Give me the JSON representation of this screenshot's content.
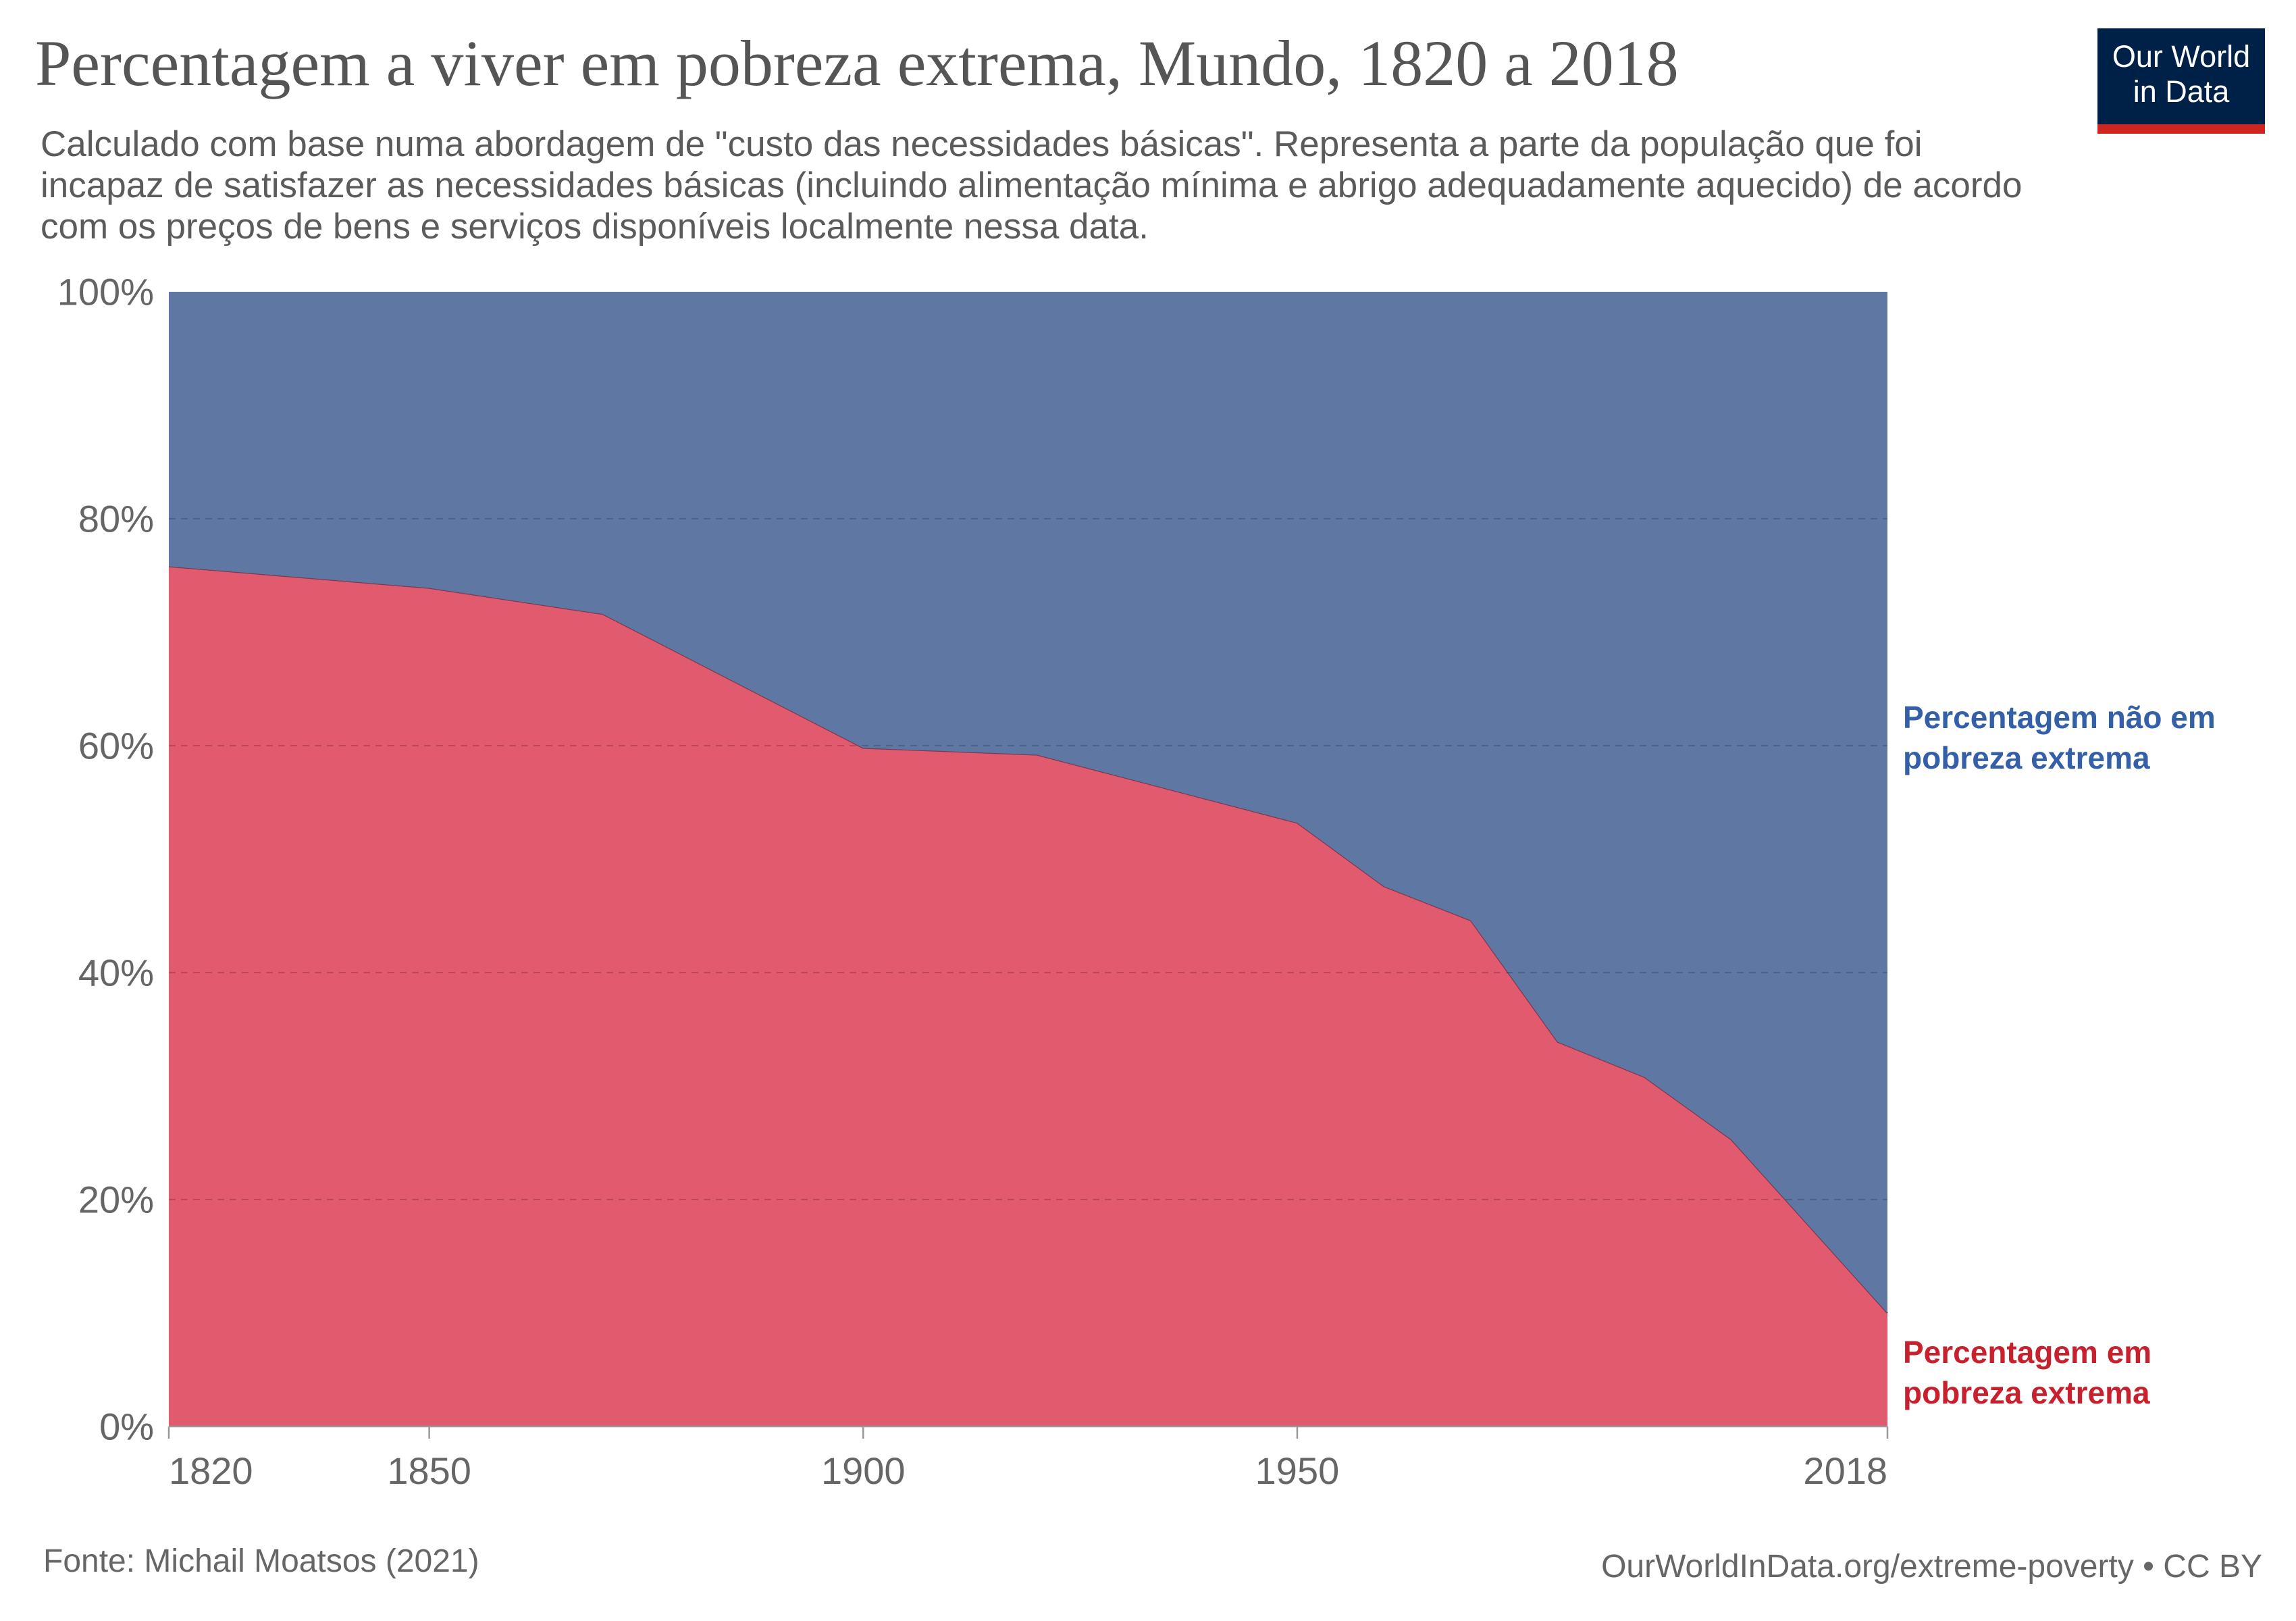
{
  "header": {
    "title": "Percentagem a viver em pobreza extrema, Mundo, 1820 a 2018",
    "subtitle": "Calculado com base numa abordagem de \"custo das necessidades básicas\". Representa a parte da população que foi incapaz de satisfazer as necessidades básicas (incluindo alimentação mínima e abrigo adequadamente aquecido) de acordo com os preços de bens e serviços disponíveis localmente nessa data."
  },
  "logo": {
    "line1": "Our World",
    "line2": "in Data"
  },
  "footer": {
    "source": "Fonte: Michail Moatsos (2021)",
    "url": "OurWorldInData.org/extreme-poverty • CC BY"
  },
  "chart_data": {
    "type": "area",
    "stacked": true,
    "title": "Percentagem a viver em pobreza extrema, Mundo, 1820 a 2018",
    "xlim": [
      1820,
      2018
    ],
    "ylim": [
      0,
      100
    ],
    "x_ticks": [
      "1820",
      "1850",
      "1900",
      "1950",
      "2018"
    ],
    "y_ticks": [
      "0%",
      "20%",
      "40%",
      "60%",
      "80%",
      "100%"
    ],
    "grid": true,
    "legend": "right",
    "x": [
      1820,
      1850,
      1870,
      1900,
      1920,
      1950,
      1960,
      1970,
      1980,
      1990,
      2000,
      2018
    ],
    "series": [
      {
        "name": "Percentagem em pobreza extrema",
        "color": "#e15a6e",
        "label_color": "#c8202d",
        "values": [
          75.8,
          73.9,
          71.6,
          59.8,
          59.2,
          53.2,
          47.6,
          44.6,
          33.9,
          30.8,
          25.3,
          10.0
        ]
      },
      {
        "name": "Percentagem não em pobreza extrema",
        "color": "#5e78a3",
        "label_color": "#3360a9",
        "values": [
          24.2,
          26.1,
          28.4,
          40.2,
          40.8,
          46.8,
          52.4,
          55.4,
          66.1,
          69.2,
          74.7,
          90.0
        ]
      }
    ]
  }
}
